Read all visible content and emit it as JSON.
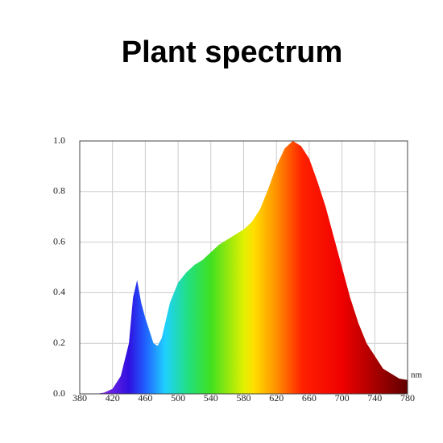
{
  "chart_data": {
    "type": "area",
    "title": "Plant spectrum",
    "x_unit": "nm",
    "x": [
      380,
      390,
      400,
      410,
      420,
      430,
      440,
      445,
      450,
      455,
      460,
      465,
      470,
      475,
      480,
      490,
      500,
      510,
      520,
      530,
      540,
      550,
      560,
      570,
      580,
      590,
      600,
      610,
      620,
      630,
      640,
      650,
      660,
      670,
      680,
      690,
      700,
      710,
      720,
      730,
      740,
      750,
      760,
      770,
      780
    ],
    "values": [
      0,
      0,
      0,
      0.005,
      0.02,
      0.07,
      0.2,
      0.38,
      0.45,
      0.36,
      0.3,
      0.25,
      0.2,
      0.19,
      0.22,
      0.36,
      0.44,
      0.48,
      0.51,
      0.53,
      0.56,
      0.59,
      0.61,
      0.63,
      0.65,
      0.68,
      0.73,
      0.81,
      0.9,
      0.97,
      1.0,
      0.98,
      0.93,
      0.84,
      0.74,
      0.62,
      0.5,
      0.38,
      0.28,
      0.2,
      0.15,
      0.1,
      0.08,
      0.06,
      0.055
    ],
    "xlim": [
      380,
      780
    ],
    "xticks": [
      380,
      420,
      460,
      500,
      540,
      580,
      620,
      660,
      700,
      740,
      780
    ],
    "ylim": [
      0,
      1
    ],
    "yticks": [
      {
        "value": 0,
        "label": "0.0"
      },
      0.2,
      0.4,
      0.6,
      0.8,
      {
        "value": 1,
        "label": "1.0"
      }
    ],
    "grid": true
  }
}
